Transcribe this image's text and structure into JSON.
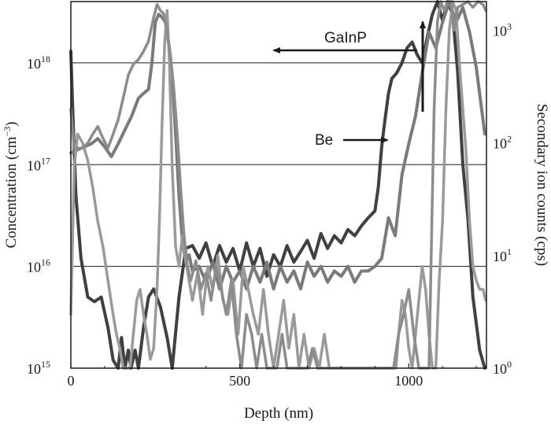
{
  "chart_data": {
    "type": "line",
    "title": "",
    "xlabel": "Depth (nm)",
    "ylabel_left_prefix": "Concentration (cm",
    "ylabel_left_sup": "−3",
    "ylabel_left_suffix": ")",
    "ylabel_right": "Secondary ion counts (cps)",
    "xlim": [
      0,
      1230
    ],
    "ylim_left": [
      1000000000000000.0,
      4e+18
    ],
    "ylim_right": [
      1,
      1800
    ],
    "yscale": "log",
    "grid": "horizontal at each decade",
    "x_ticks": [
      {
        "value": 0,
        "label": "0"
      },
      {
        "value": 500,
        "label": "500"
      },
      {
        "value": 1000,
        "label": "1000"
      }
    ],
    "y_left_ticks": [
      {
        "value": 1000000000000000.0,
        "base": "10",
        "exp": "15"
      },
      {
        "value": 1e+16,
        "base": "10",
        "exp": "16"
      },
      {
        "value": 1e+17,
        "base": "10",
        "exp": "17"
      },
      {
        "value": 1e+18,
        "base": "10",
        "exp": "18"
      }
    ],
    "y_right_ticks": [
      {
        "value": 1,
        "base": "10",
        "exp": "0"
      },
      {
        "value": 10,
        "base": "10",
        "exp": "1"
      },
      {
        "value": 100,
        "base": "10",
        "exp": "2"
      },
      {
        "value": 1000,
        "base": "10",
        "exp": "3"
      }
    ],
    "annotations": [
      {
        "text": "GaInP"
      },
      {
        "text": "Be"
      }
    ],
    "series": [
      {
        "axis": "left",
        "color": "#404040",
        "x": [
          0,
          5,
          15,
          30,
          50,
          70,
          90,
          110,
          125,
          140,
          150,
          160,
          170,
          178,
          190,
          200,
          215,
          230,
          245,
          265,
          285,
          300,
          320,
          340,
          360,
          380,
          400,
          420,
          440,
          460,
          480,
          500,
          520,
          540,
          560,
          580,
          600,
          620,
          640,
          660,
          680,
          700,
          720,
          740,
          760,
          780,
          800,
          820,
          840,
          860,
          880,
          900,
          910,
          920,
          930,
          940,
          950,
          965,
          980,
          995,
          1010,
          1025,
          1040,
          1055,
          1070,
          1085,
          1100,
          1115,
          1130,
          1145,
          1160,
          1175,
          1190,
          1210,
          1225
        ],
        "y": [
          1.3e+18,
          4e+17,
          5e+16,
          1.2e+16,
          5000000000000000.0,
          4500000000000000.0,
          5000000000000000.0,
          2500000000000000.0,
          1200000000000000.0,
          800000000000000.0,
          2000000000000000.0,
          1000000000000000.0,
          1500000000000000.0,
          800000000000000.0,
          1500000000000000.0,
          900000000000000.0,
          2500000000000000.0,
          5000000000000000.0,
          6000000000000000.0,
          4000000000000000.0,
          2000000000000000.0,
          800000000000000.0,
          5000000000000000.0,
          1.5e+16,
          1.6e+16,
          1.2e+16,
          1.7e+16,
          1e+16,
          1.6e+16,
          1.1e+16,
          1.5e+16,
          9000000000000000.0,
          1.7e+16,
          1e+16,
          1.5e+16,
          8000000000000000.0,
          1.3e+16,
          1e+16,
          1.6e+16,
          1.1e+16,
          1.4e+16,
          1.8e+16,
          1.2e+16,
          2.1e+16,
          1.5e+16,
          2e+16,
          1.7e+16,
          2.3e+16,
          2e+16,
          2.5e+16,
          3e+16,
          3.5e+16,
          6e+16,
          1.5e+17,
          2.8e+17,
          5e+17,
          7e+17,
          8e+17,
          1e+18,
          1.4e+18,
          1.6e+18,
          1.2e+18,
          1e+18,
          1.8e+18,
          3e+18,
          4e+18,
          2.6e+18,
          4e+18,
          3e+18,
          8e+17,
          1e+17,
          3e+16,
          5000000000000000.0,
          1500000000000000.0,
          1000000000000000.0
        ]
      },
      {
        "axis": "left",
        "color": "#7a7a7a",
        "x": [
          0,
          20,
          40,
          60,
          80,
          100,
          120,
          140,
          160,
          180,
          200,
          215,
          230,
          240,
          250,
          260,
          270,
          280,
          290,
          300,
          310,
          320,
          330,
          340,
          350,
          360,
          380,
          400,
          420,
          440,
          460,
          480,
          500,
          520,
          540,
          560,
          580,
          600,
          620,
          640,
          660,
          680,
          700,
          720,
          740,
          760,
          780,
          800,
          820,
          840,
          860,
          880,
          900,
          920,
          940,
          960,
          980,
          1000,
          1020,
          1040,
          1060,
          1080,
          1100,
          1120,
          1140,
          1160,
          1180,
          1200,
          1225
        ],
        "y": [
          1.3e+17,
          1.4e+17,
          1.5e+17,
          1.6e+17,
          1.8e+17,
          1.5e+17,
          1.2e+17,
          1.6e+17,
          2.2e+17,
          3e+17,
          4.5e+17,
          5e+17,
          5.5e+17,
          1e+18,
          2.5e+18,
          3e+18,
          2.8e+18,
          2.5e+18,
          1.5e+18,
          7e+17,
          2e+17,
          5e+16,
          1.8e+16,
          1.1e+16,
          1.3e+16,
          9000000000000000.0,
          1e+16,
          7000000000000000.0,
          1.1e+16,
          6000000000000000.0,
          1e+16,
          7000000000000000.0,
          9000000000000000.0,
          6000000000000000.0,
          1e+16,
          7000000000000000.0,
          1.1e+16,
          6000000000000000.0,
          1e+16,
          7000000000000000.0,
          9000000000000000.0,
          6000000000000000.0,
          1.1e+16,
          8000000000000000.0,
          1e+16,
          7000000000000000.0,
          9000000000000000.0,
          8000000000000000.0,
          1e+16,
          7000000000000000.0,
          9000000000000000.0,
          9000000000000000.0,
          1e+16,
          1.2e+16,
          3e+16,
          2e+16,
          8e+16,
          1.6e+17,
          3e+17,
          8e+17,
          2e+18,
          1.4e+18,
          2.5e+18,
          4e+18,
          2.5e+18,
          3.5e+18,
          2e+18,
          9e+17,
          2e+17
        ]
      },
      {
        "axis": "right",
        "color": "#9a9a9a",
        "x": [
          0,
          10,
          20,
          35,
          50,
          65,
          80,
          95,
          110,
          125,
          135,
          145,
          155,
          165,
          175,
          185,
          195,
          205,
          215,
          225,
          235,
          245,
          255,
          262,
          270,
          278,
          285,
          292,
          300,
          310,
          320,
          330,
          340,
          350,
          360,
          375,
          390,
          405,
          420,
          435,
          450,
          465,
          480,
          495,
          510,
          525,
          540,
          555,
          570,
          585,
          600,
          615,
          630,
          645,
          660,
          675,
          690,
          705,
          720,
          735,
          750,
          765,
          780,
          795,
          810,
          825,
          840,
          855,
          870,
          885,
          900,
          915,
          930,
          945,
          955,
          962,
          970,
          980,
          990,
          1000,
          1010,
          1020,
          1030,
          1040,
          1050,
          1060,
          1070,
          1080,
          1090,
          1100,
          1110,
          1120,
          1130,
          1140,
          1150,
          1160,
          1170,
          1180,
          1190,
          1200,
          1210,
          1220,
          1228
        ],
        "y": [
          3,
          60,
          120,
          100,
          70,
          40,
          20,
          12,
          6,
          3,
          2,
          1.5,
          1,
          0.8,
          1,
          2,
          4,
          5,
          3,
          2,
          1.2,
          1.5,
          5,
          20,
          150,
          800,
          1500,
          500,
          60,
          12,
          8,
          15,
          9,
          6,
          4,
          7,
          3,
          8,
          5,
          10,
          4,
          3,
          6,
          2,
          8,
          5,
          3,
          2,
          5,
          2,
          1,
          2,
          4,
          1.5,
          3,
          1,
          2,
          0.8,
          1.5,
          1,
          2,
          1,
          0.8,
          1,
          1,
          1,
          1,
          1,
          1,
          1,
          1,
          1,
          1,
          1,
          0.8,
          1,
          2,
          4,
          3,
          1.5,
          1,
          2,
          4,
          8,
          5,
          2,
          1,
          0.8,
          6,
          20,
          200,
          1000,
          1800,
          1500,
          500,
          200,
          80,
          20,
          8,
          6,
          5,
          5,
          4
        ]
      },
      {
        "axis": "right",
        "color": "#8c8c8c",
        "x": [
          0,
          10,
          20,
          35,
          50,
          65,
          80,
          95,
          110,
          125,
          140,
          155,
          170,
          185,
          200,
          215,
          230,
          245,
          255,
          265,
          275,
          285,
          295,
          305,
          315,
          325,
          335,
          345,
          355,
          370,
          385,
          400,
          415,
          430,
          445,
          460,
          475,
          490,
          505,
          520,
          535,
          550,
          565,
          580,
          595,
          610,
          625,
          640,
          655,
          670,
          685,
          700,
          715,
          730,
          745,
          760,
          775,
          790,
          805,
          820,
          835,
          850,
          865,
          880,
          895,
          910,
          925,
          940,
          955,
          970,
          985,
          1000,
          1015,
          1030,
          1045,
          1060,
          1075,
          1085,
          1095,
          1105,
          1115,
          1125,
          1135,
          1145,
          1160,
          1175,
          1190,
          1205,
          1220,
          1228
        ],
        "y": [
          200,
          90,
          90,
          90,
          100,
          120,
          140,
          110,
          90,
          120,
          160,
          250,
          400,
          500,
          550,
          650,
          800,
          1300,
          1700,
          1500,
          1400,
          1000,
          600,
          300,
          120,
          40,
          15,
          8,
          6,
          9,
          5,
          7,
          4,
          8,
          5,
          3,
          6,
          2,
          1,
          3,
          2,
          1,
          2,
          1,
          0.8,
          1,
          2,
          1,
          0.8,
          1,
          0.8,
          1,
          1.5,
          1,
          0.8,
          1,
          0.8,
          1,
          1,
          0.9,
          0.9,
          0.9,
          0.9,
          1,
          1,
          0.9,
          1,
          0.8,
          1,
          2,
          3,
          5,
          2,
          1,
          0.8,
          1,
          200,
          1200,
          1800,
          1500,
          2000,
          1800,
          1000,
          1600,
          1700,
          1800,
          1600,
          1800,
          1700,
          1500
        ]
      }
    ]
  }
}
